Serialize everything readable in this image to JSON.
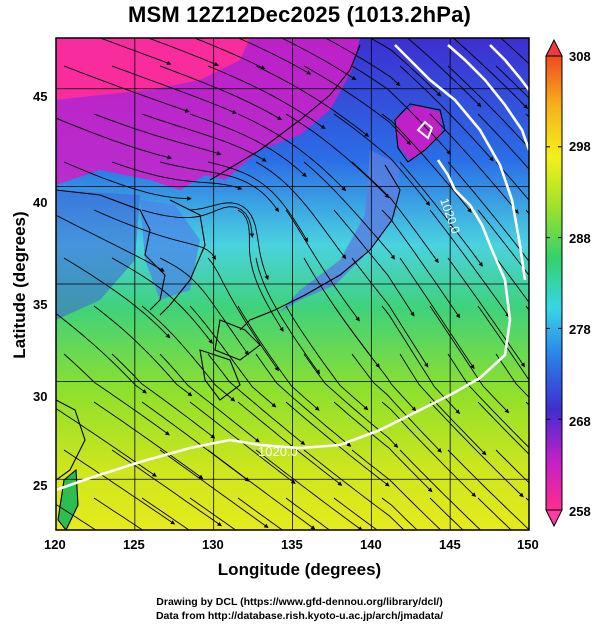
{
  "title": "MSM 12Z12Dec2025 (1013.2hPa)",
  "x_axis": {
    "label": "Longitude (degrees)",
    "ticks": [
      "120",
      "125",
      "130",
      "135",
      "140",
      "145",
      "150"
    ],
    "range": [
      120,
      150
    ]
  },
  "y_axis": {
    "label": "Latitude  (degrees)",
    "ticks": [
      "25",
      "30",
      "35",
      "40",
      "45"
    ],
    "range": [
      22.4,
      47.6
    ]
  },
  "colorbar": {
    "ticks": [
      "308",
      "298",
      "288",
      "278",
      "268",
      "258"
    ],
    "range": [
      258,
      308
    ],
    "colors": [
      "#ff2d8a",
      "#c020c8",
      "#3d2fd0",
      "#2a7de8",
      "#37d6e6",
      "#34d16a",
      "#9de22a",
      "#f5f01a",
      "#f7b21c",
      "#ef4b1e"
    ]
  },
  "isobars": {
    "south_label": "1020.0",
    "east_label": "1020.0",
    "color": "#ffffff"
  },
  "credits": {
    "line1": "Drawing by DCL (https://www.gfd-dennou.org/library/dcl/)",
    "line2": "Data from http://database.rish.kyoto-u.ac.jp/arch/jmadata/"
  }
}
